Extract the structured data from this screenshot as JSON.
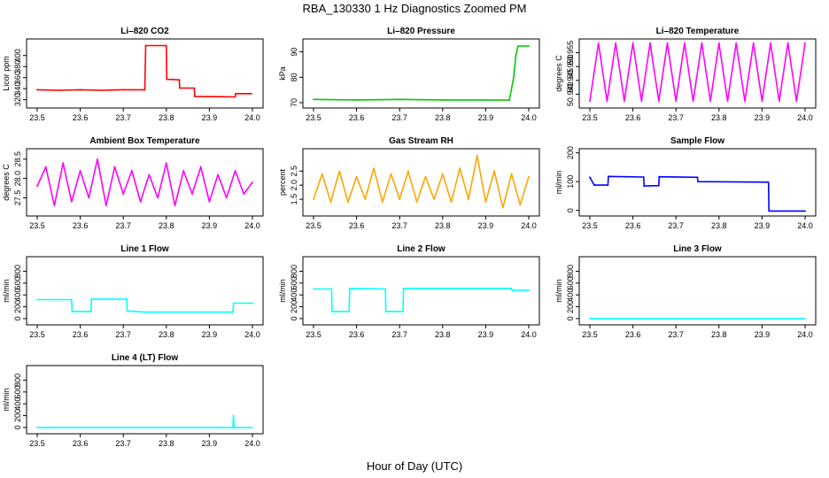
{
  "figure": {
    "title": "RBA_130330  1 Hz Diagnostics Zoomed PM",
    "xlabel": "Hour of Day (UTC)"
  },
  "chart_data": [
    {
      "type": "line",
      "title": "Li–820 CO2",
      "ylabel": "Licor ppm",
      "color": "#ff0000",
      "xlim": [
        23.5,
        24.0
      ],
      "ylim": [
        310,
        425
      ],
      "xticks": [
        "23.5",
        "23.6",
        "23.7",
        "23.8",
        "23.9",
        "24.0"
      ],
      "yticks": [
        "320",
        "340",
        "360",
        "380",
        "400"
      ],
      "series": [
        {
          "x": [
            23.5,
            23.55,
            23.6,
            23.65,
            23.7,
            23.75,
            23.752,
            23.8,
            23.801,
            23.83,
            23.831,
            23.865,
            23.866,
            23.96,
            23.961,
            23.998
          ],
          "y": [
            338,
            337,
            338,
            337,
            338,
            338,
            418,
            418,
            357,
            356,
            341,
            341,
            326,
            325,
            331,
            331
          ]
        }
      ]
    },
    {
      "type": "line",
      "title": "Li–820 Pressure",
      "ylabel": "kPa",
      "color": "#00cc00",
      "xlim": [
        23.5,
        24.0
      ],
      "ylim": [
        69,
        94
      ],
      "xticks": [
        "23.5",
        "23.6",
        "23.7",
        "23.8",
        "23.9",
        "24.0"
      ],
      "yticks": [
        "70",
        "80",
        "90"
      ],
      "series": [
        {
          "x": [
            23.5,
            23.6,
            23.7,
            23.8,
            23.9,
            23.955,
            23.965,
            23.97,
            23.975,
            24.0
          ],
          "y": [
            71.3,
            71.1,
            71.3,
            71.1,
            71.1,
            71.0,
            80.0,
            88.5,
            92.3,
            92.3
          ]
        }
      ]
    },
    {
      "type": "line",
      "title": "Li–820 Temperature",
      "ylabel": "degrees C",
      "color": "#ff00ff",
      "xlim": [
        23.5,
        24.0
      ],
      "ylim": [
        50.936,
        50.959
      ],
      "xticks": [
        "23.5",
        "23.6",
        "23.7",
        "23.8",
        "23.9",
        "24.0"
      ],
      "yticks": [
        "50.940",
        "50.945",
        "50.950",
        "50.955"
      ],
      "series": [
        {
          "x": [
            23.5,
            23.52,
            23.54,
            23.56,
            23.58,
            23.6,
            23.62,
            23.64,
            23.66,
            23.68,
            23.7,
            23.72,
            23.74,
            23.76,
            23.78,
            23.8,
            23.82,
            23.84,
            23.86,
            23.88,
            23.9,
            23.92,
            23.94,
            23.96,
            23.98,
            24.0
          ],
          "y": [
            50.9375,
            50.9585,
            50.9375,
            50.9585,
            50.9375,
            50.9585,
            50.9375,
            50.9585,
            50.9375,
            50.9585,
            50.9375,
            50.9585,
            50.9375,
            50.9585,
            50.9375,
            50.9585,
            50.9375,
            50.9585,
            50.9375,
            50.9585,
            50.9375,
            50.9585,
            50.9375,
            50.9585,
            50.9375,
            50.9585
          ]
        }
      ]
    },
    {
      "type": "line",
      "title": "Ambient Box Temperature",
      "ylabel": "degrees C",
      "color": "#ff00ff",
      "xlim": [
        23.5,
        24.0
      ],
      "ylim": [
        27.1,
        28.7
      ],
      "xticks": [
        "23.5",
        "23.6",
        "23.7",
        "23.8",
        "23.9",
        "24.0"
      ],
      "yticks": [
        "27.5",
        "28.0",
        "28.5"
      ],
      "series": [
        {
          "x": [
            23.5,
            23.52,
            23.54,
            23.56,
            23.58,
            23.6,
            23.62,
            23.64,
            23.66,
            23.68,
            23.7,
            23.72,
            23.74,
            23.76,
            23.78,
            23.8,
            23.82,
            23.84,
            23.86,
            23.88,
            23.9,
            23.92,
            23.94,
            23.96,
            23.98,
            24.0
          ],
          "y": [
            27.8,
            28.3,
            27.3,
            28.4,
            27.4,
            28.2,
            27.5,
            28.5,
            27.3,
            28.3,
            27.6,
            28.2,
            27.4,
            28.1,
            27.5,
            28.4,
            27.3,
            28.2,
            27.6,
            28.3,
            27.4,
            28.1,
            27.5,
            28.2,
            27.6,
            27.9
          ]
        }
      ]
    },
    {
      "type": "line",
      "title": "Gas Stream RH",
      "ylabel": "percent",
      "color": "#ffa500",
      "xlim": [
        23.5,
        24.0
      ],
      "ylim": [
        1.0,
        3.2
      ],
      "xticks": [
        "23.5",
        "23.6",
        "23.7",
        "23.8",
        "23.9",
        "24.0"
      ],
      "yticks": [
        "1.5",
        "2.0",
        "2.5"
      ],
      "series": [
        {
          "x": [
            23.5,
            23.52,
            23.54,
            23.56,
            23.58,
            23.6,
            23.62,
            23.64,
            23.66,
            23.68,
            23.7,
            23.72,
            23.74,
            23.76,
            23.78,
            23.8,
            23.82,
            23.84,
            23.86,
            23.88,
            23.9,
            23.92,
            23.94,
            23.96,
            23.98,
            24.0
          ],
          "y": [
            1.5,
            2.4,
            1.4,
            2.5,
            1.4,
            2.3,
            1.5,
            2.6,
            1.4,
            2.4,
            1.5,
            2.5,
            1.4,
            2.3,
            1.5,
            2.4,
            1.4,
            2.6,
            1.5,
            3.05,
            1.4,
            2.5,
            1.2,
            2.4,
            1.3,
            2.3
          ]
        }
      ]
    },
    {
      "type": "line",
      "title": "Sample Flow",
      "ylabel": "ml/min",
      "color": "#0000ff",
      "xlim": [
        23.5,
        24.0
      ],
      "ylim": [
        -10,
        205
      ],
      "xticks": [
        "23.5",
        "23.6",
        "23.7",
        "23.8",
        "23.9",
        "24.0"
      ],
      "yticks": [
        "0",
        "100",
        "200"
      ],
      "series": [
        {
          "x": [
            23.5,
            23.51,
            23.542,
            23.543,
            23.625,
            23.626,
            23.66,
            23.661,
            23.75,
            23.751,
            23.915,
            23.916,
            24.0
          ],
          "y": [
            115,
            88,
            88,
            118,
            116,
            85,
            86,
            117,
            115,
            100,
            98,
            -2,
            -2
          ]
        }
      ]
    },
    {
      "type": "line",
      "title": "Line 1 Flow",
      "ylabel": "ml/min",
      "color": "#00ffff",
      "xlim": [
        23.5,
        24.0
      ],
      "ylim": [
        -60,
        1000
      ],
      "xticks": [
        "23.5",
        "23.6",
        "23.7",
        "23.8",
        "23.9",
        "24.0"
      ],
      "yticks": [
        "0",
        "200",
        "400",
        "600",
        "800"
      ],
      "series": [
        {
          "x": [
            23.5,
            23.58,
            23.581,
            23.625,
            23.626,
            23.708,
            23.709,
            23.75,
            23.955,
            23.956,
            24.0
          ],
          "y": [
            320,
            320,
            120,
            120,
            330,
            330,
            130,
            110,
            110,
            260,
            260
          ]
        }
      ]
    },
    {
      "type": "line",
      "title": "Line 2 Flow",
      "ylabel": "ml/min",
      "color": "#00ffff",
      "xlim": [
        23.5,
        24.0
      ],
      "ylim": [
        -60,
        1000
      ],
      "xticks": [
        "23.5",
        "23.6",
        "23.7",
        "23.8",
        "23.9",
        "24.0"
      ],
      "yticks": [
        "0",
        "200",
        "400",
        "600",
        "800"
      ],
      "series": [
        {
          "x": [
            23.5,
            23.542,
            23.543,
            23.583,
            23.584,
            23.667,
            23.668,
            23.708,
            23.709,
            23.96,
            23.961,
            24.0
          ],
          "y": [
            500,
            500,
            120,
            120,
            510,
            500,
            120,
            120,
            510,
            510,
            480,
            480
          ]
        }
      ]
    },
    {
      "type": "line",
      "title": "Line 3 Flow",
      "ylabel": "ml/min",
      "color": "#00ffff",
      "xlim": [
        23.5,
        24.0
      ],
      "ylim": [
        -60,
        1000
      ],
      "xticks": [
        "23.5",
        "23.6",
        "23.7",
        "23.8",
        "23.9",
        "24.0"
      ],
      "yticks": [
        "0",
        "200",
        "400",
        "600",
        "800"
      ],
      "series": [
        {
          "x": [
            23.5,
            24.0
          ],
          "y": [
            0,
            0
          ]
        }
      ]
    },
    {
      "type": "line",
      "title": "Line 4 (LT) Flow",
      "ylabel": "ml/min",
      "color": "#00ffff",
      "xlim": [
        23.5,
        24.0
      ],
      "ylim": [
        -60,
        1000
      ],
      "xticks": [
        "23.5",
        "23.6",
        "23.7",
        "23.8",
        "23.9",
        "24.0"
      ],
      "yticks": [
        "0",
        "200",
        "400",
        "600",
        "800"
      ],
      "series": [
        {
          "x": [
            23.5,
            23.955,
            23.956,
            23.957,
            23.958,
            24.0
          ],
          "y": [
            0,
            0,
            200,
            10,
            0,
            0
          ]
        }
      ]
    }
  ]
}
